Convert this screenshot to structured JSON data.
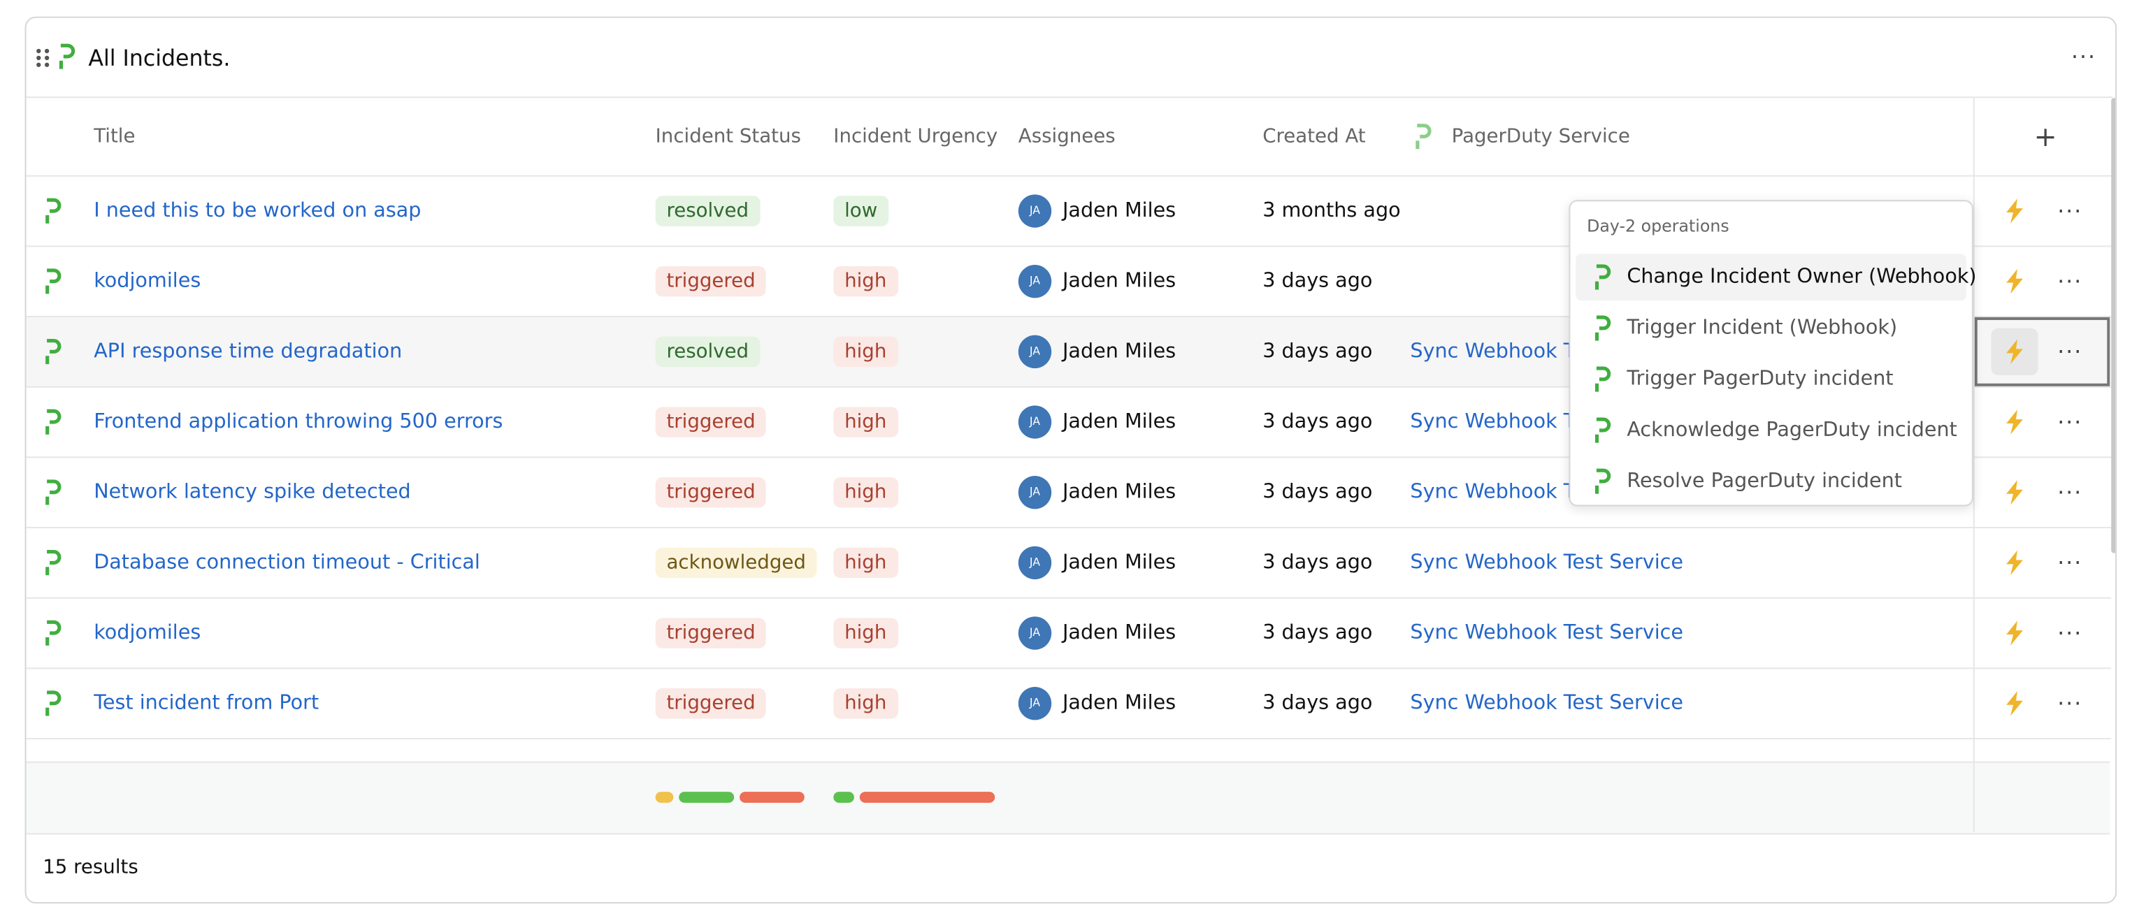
{
  "header": {
    "title": "All Incidents."
  },
  "columns": [
    "Title",
    "Incident Status",
    "Incident Urgency",
    "Assignees",
    "Created At",
    "PagerDuty Service"
  ],
  "badges": {
    "resolved": {
      "bg": "#e5f3e3",
      "fg": "#2f6a2c"
    },
    "triggered": {
      "bg": "#fbe9e6",
      "fg": "#a8402f"
    },
    "acknowledged": {
      "bg": "#fcf3dc",
      "fg": "#6e5716"
    },
    "low": {
      "bg": "#e5f3e3",
      "fg": "#2f6a2c"
    },
    "high": {
      "bg": "#fbe9e6",
      "fg": "#a8402f"
    }
  },
  "rows": [
    {
      "title": "I need this to be worked on asap",
      "status": "resolved",
      "urgency": "low",
      "initials": "JA",
      "assignee": "Jaden Miles",
      "created": "3 months ago"
    },
    {
      "title": "kodjomiles",
      "status": "triggered",
      "urgency": "high",
      "initials": "JA",
      "assignee": "Jaden Miles",
      "created": "3 days ago"
    },
    {
      "title": "API response time degradation",
      "status": "resolved",
      "urgency": "high",
      "initials": "JA",
      "assignee": "Jaden Miles",
      "created": "3 days ago",
      "service": "Sync Webhook Test Service"
    },
    {
      "title": "Frontend application throwing 500 errors",
      "status": "triggered",
      "urgency": "high",
      "initials": "JA",
      "assignee": "Jaden Miles",
      "created": "3 days ago",
      "service": "Sync Webhook Test Service"
    },
    {
      "title": "Network latency spike detected",
      "status": "triggered",
      "urgency": "high",
      "initials": "JA",
      "assignee": "Jaden Miles",
      "created": "3 days ago",
      "service": "Sync Webhook Test Service"
    },
    {
      "title": "Database connection timeout - Critical",
      "status": "acknowledged",
      "urgency": "high",
      "initials": "JA",
      "assignee": "Jaden Miles",
      "created": "3 days ago",
      "service": "Sync Webhook Test Service"
    },
    {
      "title": "kodjomiles",
      "status": "triggered",
      "urgency": "high",
      "initials": "JA",
      "assignee": "Jaden Miles",
      "created": "3 days ago",
      "service": "Sync Webhook Test Service"
    },
    {
      "title": "Test incident from Port",
      "status": "triggered",
      "urgency": "high",
      "initials": "JA",
      "assignee": "Jaden Miles",
      "created": "3 days ago",
      "service": "Sync Webhook Test Service"
    }
  ],
  "menu": {
    "title": "Day-2 operations",
    "items": [
      "Change Incident Owner (Webhook)",
      "Trigger Incident (Webhook)",
      "Trigger PagerDuty incident",
      "Acknowledge PagerDuty incident",
      "Resolve PagerDuty incident"
    ]
  },
  "summary": {
    "status": [
      {
        "value": 2,
        "color": "#f0c24b"
      },
      {
        "value": 6,
        "color": "#5cc04f"
      },
      {
        "value": 7,
        "color": "#ec6f56"
      }
    ],
    "urgency": [
      {
        "value": 2,
        "color": "#5cc04f"
      },
      {
        "value": 13,
        "color": "#ec6f56"
      }
    ]
  },
  "footer": {
    "results": "15 results"
  }
}
